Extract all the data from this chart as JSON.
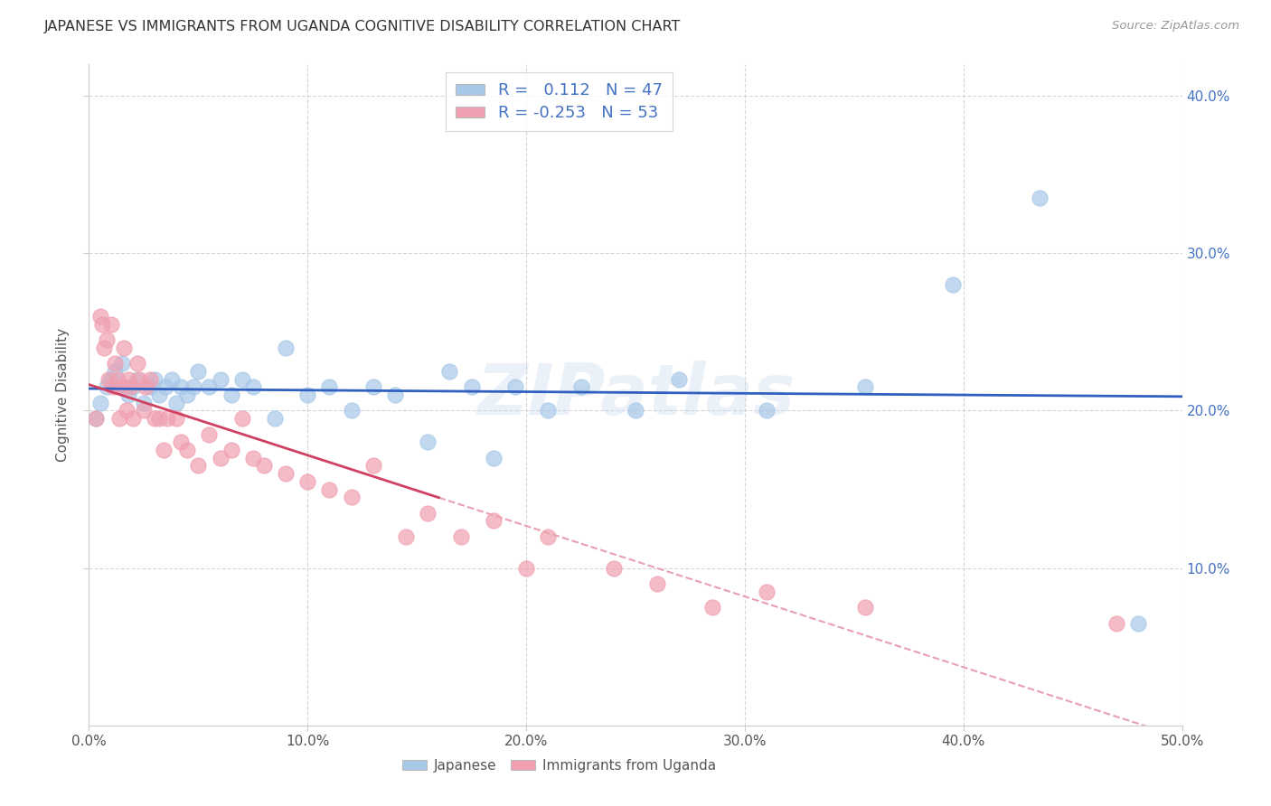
{
  "title": "JAPANESE VS IMMIGRANTS FROM UGANDA COGNITIVE DISABILITY CORRELATION CHART",
  "source": "Source: ZipAtlas.com",
  "ylabel": "Cognitive Disability",
  "r_japanese": 0.112,
  "n_japanese": 47,
  "r_uganda": -0.253,
  "n_uganda": 53,
  "xlim": [
    0.0,
    0.5
  ],
  "ylim": [
    0.0,
    0.42
  ],
  "xticks": [
    0.0,
    0.1,
    0.2,
    0.3,
    0.4,
    0.5
  ],
  "xticklabels": [
    "0.0%",
    "10.0%",
    "20.0%",
    "30.0%",
    "40.0%",
    "50.0%"
  ],
  "yticks": [
    0.1,
    0.2,
    0.3,
    0.4
  ],
  "yticklabels": [
    "10.0%",
    "20.0%",
    "30.0%",
    "40.0%"
  ],
  "color_japanese": "#a8c8e8",
  "color_uganda": "#f0a0b0",
  "trendline_japanese": "#3060c0",
  "trendline_uganda_solid": "#d04060",
  "trendline_uganda_dashed": "#e8a0b0",
  "text_blue": "#4472c4",
  "watermark": "ZIPatlas",
  "japanese_x": [
    0.003,
    0.005,
    0.008,
    0.01,
    0.012,
    0.015,
    0.015,
    0.018,
    0.02,
    0.022,
    0.025,
    0.028,
    0.03,
    0.032,
    0.035,
    0.038,
    0.04,
    0.042,
    0.045,
    0.048,
    0.05,
    0.055,
    0.06,
    0.065,
    0.07,
    0.075,
    0.085,
    0.09,
    0.1,
    0.11,
    0.12,
    0.13,
    0.14,
    0.155,
    0.165,
    0.175,
    0.185,
    0.195,
    0.21,
    0.225,
    0.25,
    0.27,
    0.31,
    0.355,
    0.395,
    0.435,
    0.48
  ],
  "japanese_y": [
    0.195,
    0.205,
    0.215,
    0.22,
    0.225,
    0.215,
    0.23,
    0.21,
    0.215,
    0.22,
    0.205,
    0.215,
    0.22,
    0.21,
    0.215,
    0.22,
    0.205,
    0.215,
    0.21,
    0.215,
    0.225,
    0.215,
    0.22,
    0.21,
    0.22,
    0.215,
    0.195,
    0.24,
    0.21,
    0.215,
    0.2,
    0.215,
    0.21,
    0.18,
    0.225,
    0.215,
    0.17,
    0.215,
    0.2,
    0.215,
    0.2,
    0.22,
    0.2,
    0.215,
    0.28,
    0.335,
    0.065
  ],
  "uganda_x": [
    0.003,
    0.005,
    0.006,
    0.007,
    0.008,
    0.009,
    0.01,
    0.011,
    0.012,
    0.013,
    0.014,
    0.015,
    0.016,
    0.017,
    0.018,
    0.019,
    0.02,
    0.022,
    0.023,
    0.025,
    0.026,
    0.028,
    0.03,
    0.032,
    0.034,
    0.036,
    0.04,
    0.042,
    0.045,
    0.05,
    0.055,
    0.06,
    0.065,
    0.07,
    0.075,
    0.08,
    0.09,
    0.1,
    0.11,
    0.12,
    0.13,
    0.145,
    0.155,
    0.17,
    0.185,
    0.2,
    0.21,
    0.24,
    0.26,
    0.285,
    0.31,
    0.355,
    0.47
  ],
  "uganda_y": [
    0.195,
    0.26,
    0.255,
    0.24,
    0.245,
    0.22,
    0.255,
    0.215,
    0.23,
    0.22,
    0.195,
    0.215,
    0.24,
    0.2,
    0.22,
    0.215,
    0.195,
    0.23,
    0.22,
    0.2,
    0.215,
    0.22,
    0.195,
    0.195,
    0.175,
    0.195,
    0.195,
    0.18,
    0.175,
    0.165,
    0.185,
    0.17,
    0.175,
    0.195,
    0.17,
    0.165,
    0.16,
    0.155,
    0.15,
    0.145,
    0.165,
    0.12,
    0.135,
    0.12,
    0.13,
    0.1,
    0.12,
    0.1,
    0.09,
    0.075,
    0.085,
    0.075,
    0.065
  ],
  "trendline_j_x0": 0.0,
  "trendline_j_x1": 0.5,
  "trendline_j_y0": 0.198,
  "trendline_j_y1": 0.218,
  "trendline_u_solid_x0": 0.0,
  "trendline_u_solid_x1": 0.155,
  "trendline_u_y0": 0.228,
  "trendline_u_y1": 0.175,
  "trendline_u_dashed_x0": 0.155,
  "trendline_u_dashed_x1": 0.5
}
